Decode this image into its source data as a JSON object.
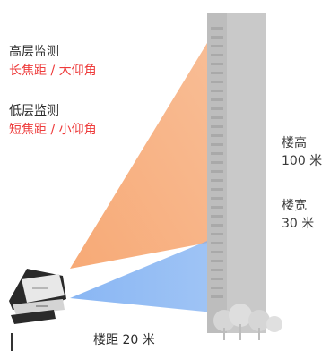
{
  "labels": {
    "high_title": "高层监测",
    "high_sub": "长焦距 / 大仰角",
    "low_title": "低层监测",
    "low_sub": "短焦距 / 小仰角",
    "building_height": "楼高",
    "building_height_value": "100 米",
    "building_width": "楼宽",
    "building_width_value": "30 米",
    "distance": "楼距 20 米"
  },
  "colors": {
    "high_beam": "#f6a26a",
    "low_beam": "#7fb0f2",
    "building": "#c9c9c9",
    "building_shadow": "#b0b0b0",
    "highlight_text": "#ee3b3b",
    "camera": "#2a2a2a"
  },
  "icons": {
    "camera": "security-camera-icon",
    "trees": "tree-icon"
  }
}
